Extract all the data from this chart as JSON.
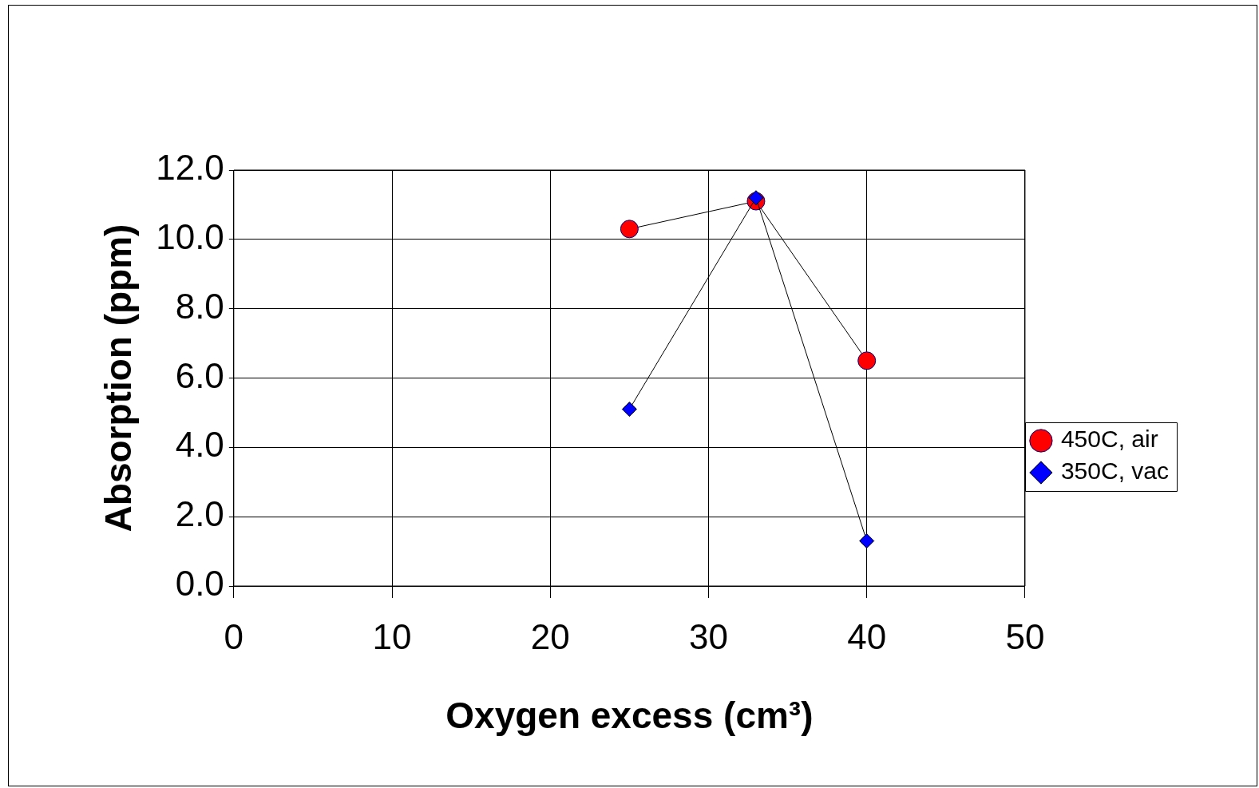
{
  "chart_data": {
    "type": "line",
    "xlabel": "Oxygen excess (cm³)",
    "ylabel": "Absorption (ppm)",
    "x": [
      25,
      33,
      40
    ],
    "series": [
      {
        "name": "450C, air",
        "color": "#ff0000",
        "marker": "circle",
        "values": [
          10.3,
          11.1,
          6.5
        ]
      },
      {
        "name": "350C, vac",
        "color": "#0000ff",
        "marker": "diamond",
        "values": [
          5.1,
          11.2,
          1.3
        ]
      }
    ],
    "xlim": [
      0,
      50
    ],
    "xticks": [
      0,
      10,
      20,
      30,
      40,
      50
    ],
    "ylim": [
      0,
      12
    ],
    "yticks": [
      {
        "value": 0,
        "label": "0.0"
      },
      {
        "value": 2,
        "label": "2.0"
      },
      {
        "value": 4,
        "label": "4.0"
      },
      {
        "value": 6,
        "label": "6.0"
      },
      {
        "value": 8,
        "label": "8.0"
      },
      {
        "value": 10,
        "label": "10.0"
      },
      {
        "value": 12,
        "label": "12.0"
      }
    ],
    "grid": true,
    "legend": "right",
    "line_style": "solid"
  }
}
